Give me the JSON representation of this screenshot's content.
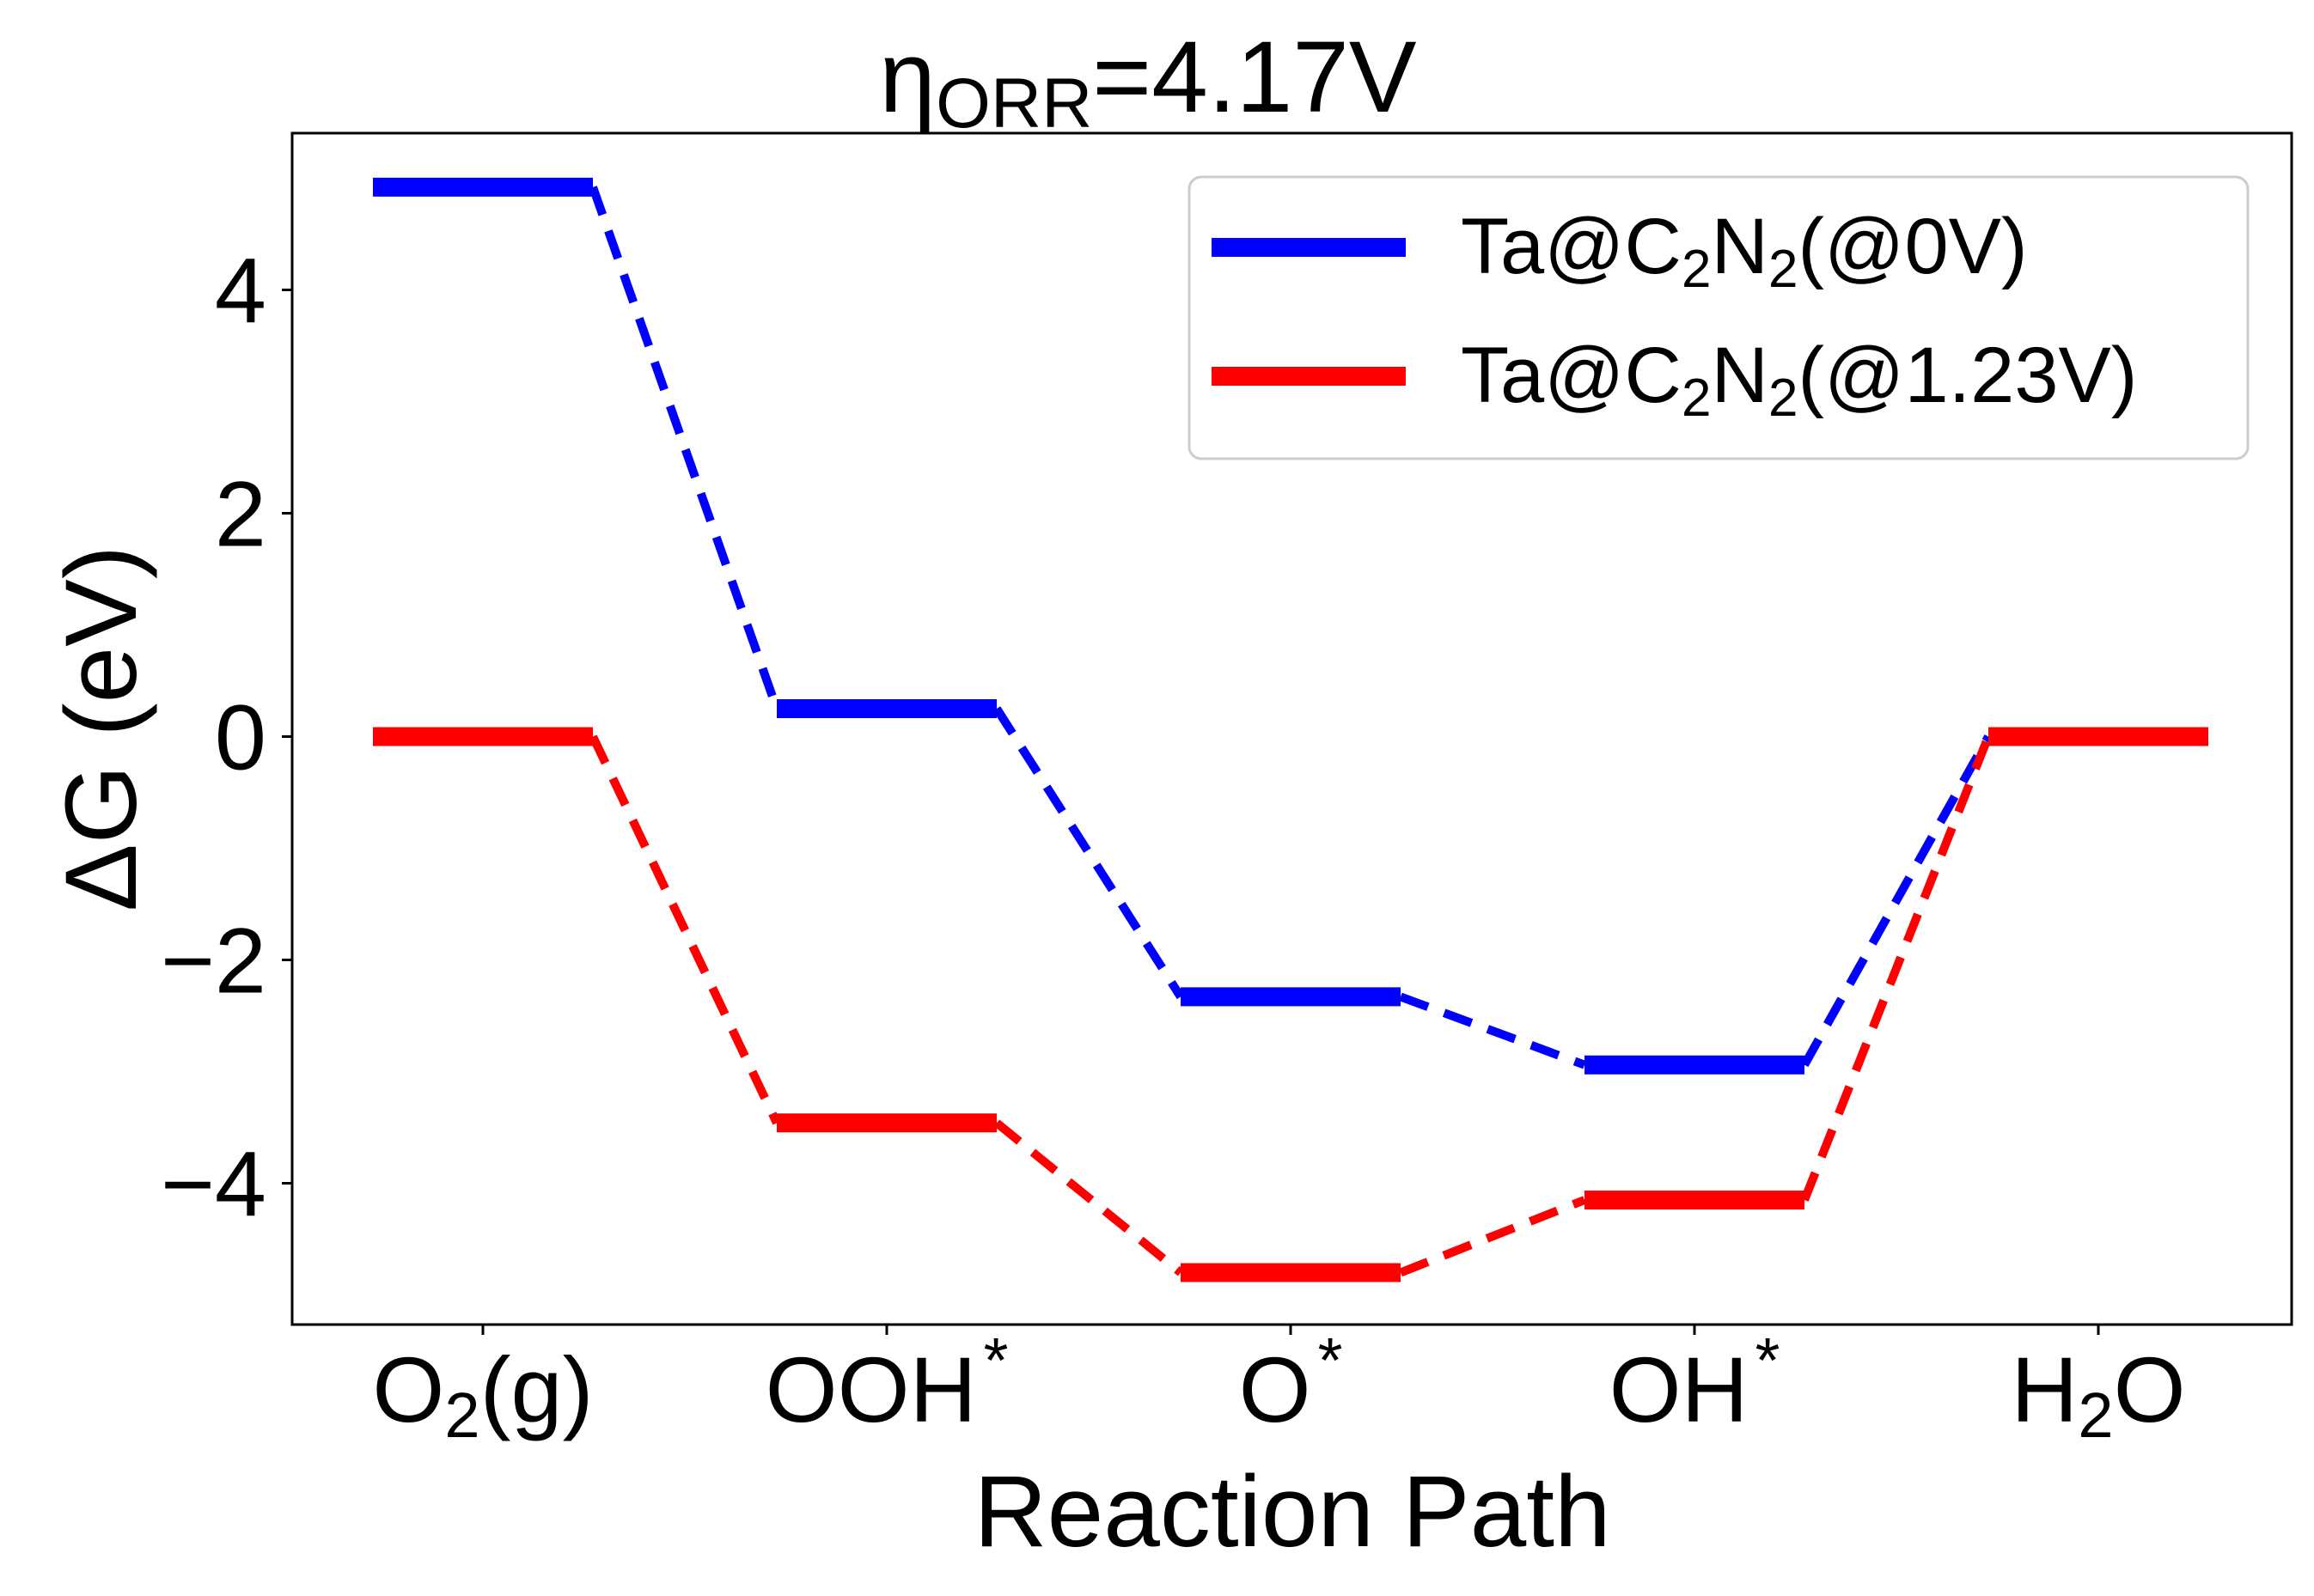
{
  "chart_data": {
    "type": "line",
    "title": {
      "eta": "η",
      "sub": "ORR",
      "rest": "=4.17V"
    },
    "xlabel": "Reaction Path",
    "ylabel": "ΔG (eV)",
    "ylim": [
      -5.3,
      5.4
    ],
    "yticks": [
      4,
      2,
      0,
      -2,
      -4
    ],
    "ytick_labels": [
      "4",
      "2",
      "0",
      "−2",
      "−4"
    ],
    "grid": false,
    "legend_position": "top-right",
    "categories": [
      {
        "main": "O",
        "sub": "2",
        "tail": "(g)",
        "sup": ""
      },
      {
        "main": "OOH",
        "sub": "",
        "tail": "",
        "sup": "*"
      },
      {
        "main": "O",
        "sub": "",
        "tail": "",
        "sup": "*"
      },
      {
        "main": "OH",
        "sub": "",
        "tail": "",
        "sup": "*"
      },
      {
        "main": "H",
        "sub": "2",
        "tail": "O",
        "sup": ""
      }
    ],
    "series": [
      {
        "legend": {
          "a": "Ta@C",
          "s1": "2",
          "b": "N",
          "s2": "2",
          "c": "(@0V)"
        },
        "color": "#0000ff",
        "values": [
          4.92,
          0.25,
          -2.33,
          -2.94,
          0
        ]
      },
      {
        "legend": {
          "a": "Ta@C",
          "s1": "2",
          "b": "N",
          "s2": "2",
          "c": "(@1.23V)"
        },
        "color": "#ff0000",
        "values": [
          0,
          -3.46,
          -4.8,
          -4.15,
          0
        ]
      }
    ]
  }
}
